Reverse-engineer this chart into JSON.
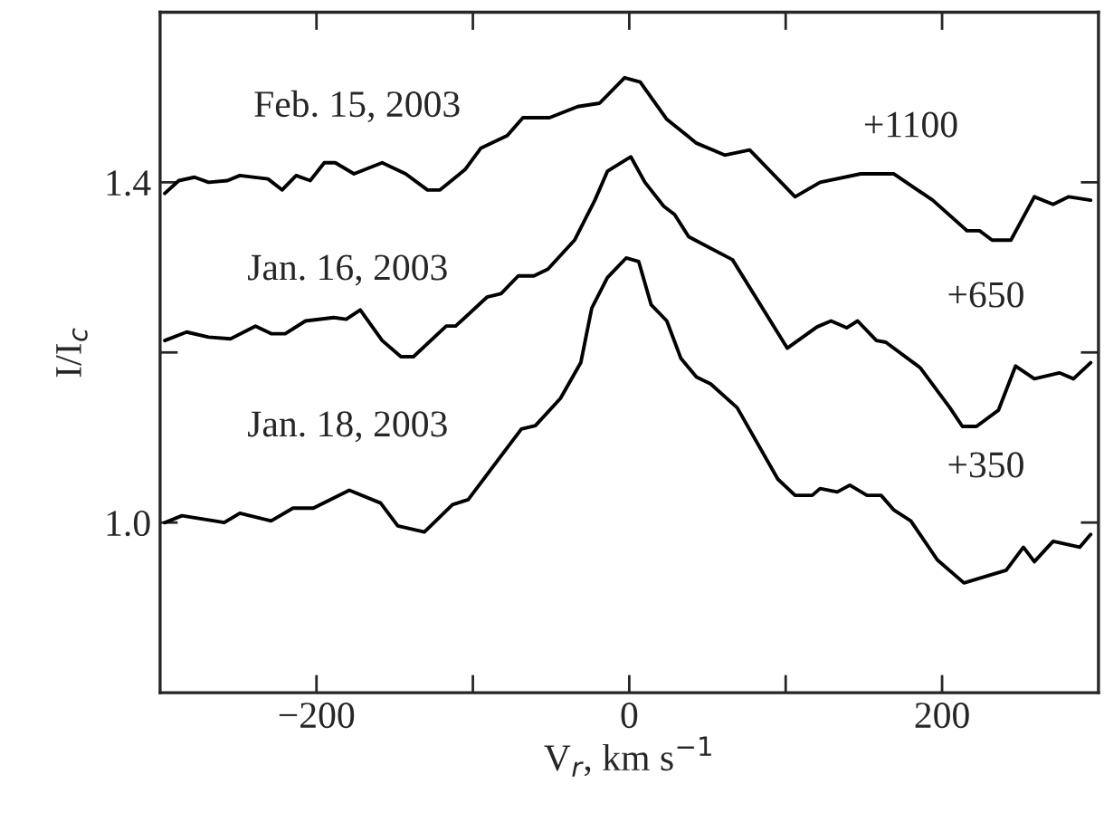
{
  "chart_data": {
    "type": "line",
    "xlabel": "V$_{r}$, km s$^{−1}$",
    "ylabel": "I/I$_{c}$",
    "xlim": [
      -300,
      300
    ],
    "ylim": [
      0.8,
      1.6
    ],
    "xticks": [
      -200,
      {
        "value": -100,
        "label": null
      },
      0,
      {
        "value": 100,
        "label": null
      },
      200
    ],
    "yticks": [
      {
        "value": 1.0,
        "label": "1.0"
      },
      {
        "value": 1.2,
        "label": null
      },
      1.4
    ],
    "grid": false,
    "legend": false,
    "marker": "none",
    "line_style": "solid",
    "series": [
      {
        "color": "#000000",
        "x": [
          -297,
          -288,
          -278,
          -269,
          -257,
          -249,
          -231,
          -222,
          -213,
          -204,
          -195,
          -188,
          -176,
          -158,
          -143,
          -129,
          -121,
          -105,
          -95,
          -78,
          -68,
          -51,
          -33,
          -19,
          -3,
          7,
          24,
          43,
          61,
          77,
          106,
          122,
          148,
          169,
          194,
          216,
          224,
          232,
          244,
          259,
          271,
          281,
          295
        ],
        "values": [
          1.387,
          1.402,
          1.406,
          1.4,
          1.402,
          1.408,
          1.404,
          1.391,
          1.408,
          1.402,
          1.423,
          1.423,
          1.41,
          1.423,
          1.41,
          1.391,
          1.391,
          1.415,
          1.44,
          1.455,
          1.476,
          1.476,
          1.489,
          1.493,
          1.523,
          1.518,
          1.474,
          1.446,
          1.432,
          1.438,
          1.383,
          1.4,
          1.41,
          1.41,
          1.379,
          1.343,
          1.343,
          1.332,
          1.332,
          1.383,
          1.374,
          1.383,
          1.379
        ]
      },
      {
        "color": "#000000",
        "x": [
          -297,
          -283,
          -269,
          -255,
          -239,
          -229,
          -220,
          -207,
          -189,
          -181,
          -172,
          -158,
          -146,
          -138,
          -117,
          -111,
          -91,
          -82,
          -71,
          -61,
          -52,
          -35,
          -22,
          -14,
          1,
          10,
          22,
          29,
          38,
          66,
          101,
          120,
          129,
          139,
          146,
          158,
          164,
          186,
          205,
          213,
          222,
          236,
          247,
          259,
          275,
          284,
          295
        ],
        "values": [
          1.214,
          1.224,
          1.218,
          1.216,
          1.231,
          1.222,
          1.222,
          1.237,
          1.241,
          1.239,
          1.25,
          1.214,
          1.195,
          1.195,
          1.231,
          1.231,
          1.265,
          1.269,
          1.29,
          1.29,
          1.298,
          1.332,
          1.379,
          1.413,
          1.43,
          1.4,
          1.372,
          1.362,
          1.336,
          1.309,
          1.205,
          1.23,
          1.237,
          1.229,
          1.237,
          1.214,
          1.212,
          1.182,
          1.135,
          1.113,
          1.113,
          1.132,
          1.184,
          1.169,
          1.176,
          1.169,
          1.188
        ]
      },
      {
        "color": "#000000",
        "x": [
          -297,
          -286,
          -259,
          -249,
          -229,
          -215,
          -202,
          -179,
          -159,
          -148,
          -131,
          -113,
          -103,
          -69,
          -60,
          -44,
          -31,
          -24,
          -14,
          -2,
          6,
          14,
          24,
          33,
          43,
          52,
          69,
          95,
          106,
          117,
          122,
          133,
          141,
          152,
          161,
          169,
          180,
          197,
          214,
          241,
          252,
          259,
          271,
          288,
          295
        ],
        "values": [
          1.0,
          1.008,
          1.0,
          1.011,
          1.002,
          1.017,
          1.017,
          1.038,
          1.023,
          0.996,
          0.989,
          1.021,
          1.027,
          1.11,
          1.114,
          1.146,
          1.188,
          1.252,
          1.288,
          1.311,
          1.307,
          1.256,
          1.237,
          1.193,
          1.171,
          1.163,
          1.135,
          1.051,
          1.032,
          1.032,
          1.04,
          1.036,
          1.044,
          1.032,
          1.032,
          1.015,
          1.002,
          0.956,
          0.929,
          0.944,
          0.971,
          0.954,
          0.978,
          0.971,
          0.986
        ]
      }
    ],
    "annotations": [
      "Feb. 15, 2003",
      "Jan. 16, 2003",
      "Jan. 18, 2003",
      "+1100",
      "+650",
      "+350"
    ]
  }
}
